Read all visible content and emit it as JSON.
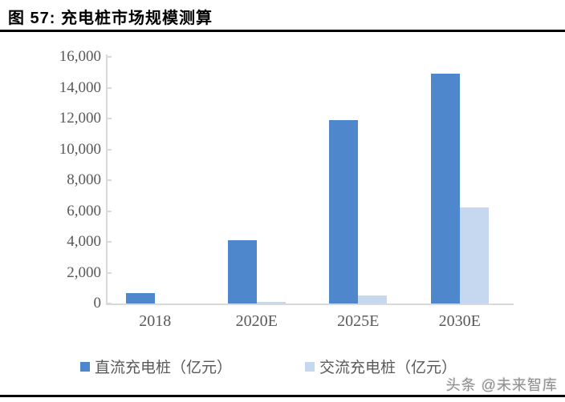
{
  "header": {
    "title": "图 57:  充电桩市场规模测算"
  },
  "watermark": "头条 @未来智库",
  "colors": {
    "dc_bar": "#4e87cb",
    "ac_bar": "#c6d8ef",
    "axis": "#d9d9d9",
    "tick_label": "#595959",
    "title_text": "#000000",
    "rule": "#000000"
  },
  "chart_data": {
    "type": "bar",
    "title": "充电桩市场规模测算",
    "categories": [
      "2018",
      "2020E",
      "2025E",
      "2030E"
    ],
    "series": [
      {
        "name": "直流充电桩（亿元）",
        "color": "#4e87cb",
        "values": [
          650,
          4100,
          11900,
          14900
        ]
      },
      {
        "name": "交流充电桩（亿元）",
        "color": "#c6d8ef",
        "values": [
          0,
          100,
          500,
          6250
        ]
      }
    ],
    "xlabel": "",
    "ylabel": "",
    "ylim": [
      0,
      16000
    ],
    "ytick_step": 2000,
    "ytick_labels": [
      "0",
      "2,000",
      "4,000",
      "6,000",
      "8,000",
      "10,000",
      "12,000",
      "14,000",
      "16,000"
    ],
    "grid": false,
    "legend_position": "bottom"
  }
}
